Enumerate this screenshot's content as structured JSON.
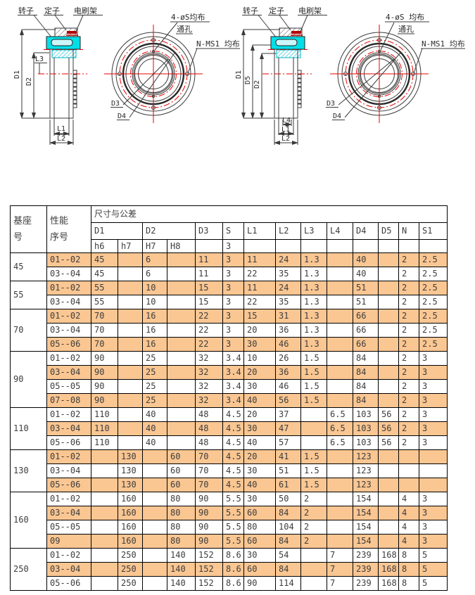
{
  "colors": {
    "highlight": "#fac692",
    "line": "#3a3a3a",
    "red": "#e80000",
    "cyan": "#00dfe8",
    "brush_red": "#b30000"
  },
  "drawing1": {
    "rotor": "转子",
    "stator": "定子",
    "brush": "电刷架",
    "holes1": "4-øS均布",
    "holes2": "通孔",
    "terminal": "N-MS1 均布",
    "d1": "D1",
    "d2": "D2",
    "l3": "L3",
    "l1": "L1",
    "l2": "L2",
    "d3": "D3",
    "d4": "D4"
  },
  "drawing2": {
    "rotor": "转子",
    "stator": "定子",
    "brush": "电刷架",
    "holes1": "4-øS 均布",
    "holes2": "通孔",
    "terminal": "N-MS1 均布",
    "d1": "D1",
    "d5": "D5",
    "d2": "D2",
    "l4": "L4",
    "l1": "L1",
    "l2": "L2",
    "d3": "D3",
    "d4": "D4"
  },
  "table": {
    "corner1": "基座\n号",
    "corner2": "性能\n序号",
    "span_header": "尺寸与公差",
    "col_headers": [
      "D1",
      "D2",
      "D3",
      "S",
      "L1",
      "L2",
      "L3",
      "L4",
      "D4",
      "D5",
      "N",
      "S1"
    ],
    "sub_headers": [
      "h6",
      "h7",
      "H7",
      "H8",
      "",
      "3",
      "",
      "",
      "",
      "",
      "",
      "",
      "",
      ""
    ],
    "groups": [
      {
        "base": "45",
        "rows": [
          {
            "perf": "01--02",
            "hl": true,
            "cells": [
              "45",
              "",
              "6",
              "",
              "11",
              "3",
              "11",
              "24",
              "1.3",
              "",
              "40",
              "",
              "2",
              "2.5"
            ]
          },
          {
            "perf": "03--04",
            "hl": false,
            "cells": [
              "45",
              "",
              "6",
              "",
              "11",
              "3",
              "22",
              "35",
              "1.3",
              "",
              "40",
              "",
              "2",
              "2.5"
            ]
          }
        ]
      },
      {
        "base": "55",
        "rows": [
          {
            "perf": "01--02",
            "hl": true,
            "cells": [
              "55",
              "",
              "10",
              "",
              "15",
              "3",
              "11",
              "24",
              "1.3",
              "",
              "51",
              "",
              "2",
              "2.5"
            ]
          },
          {
            "perf": "03--04",
            "hl": false,
            "cells": [
              "55",
              "",
              "10",
              "",
              "15",
              "3",
              "22",
              "35",
              "1.3",
              "",
              "51",
              "",
              "2",
              "2.5"
            ]
          }
        ]
      },
      {
        "base": "70",
        "rows": [
          {
            "perf": "01--02",
            "hl": true,
            "cells": [
              "70",
              "",
              "16",
              "",
              "22",
              "3",
              "15",
              "31",
              "1.3",
              "",
              "66",
              "",
              "2",
              "2.5"
            ]
          },
          {
            "perf": "03--04",
            "hl": false,
            "cells": [
              "70",
              "",
              "16",
              "",
              "22",
              "3",
              "20",
              "36",
              "1.3",
              "",
              "66",
              "",
              "2",
              "2.5"
            ]
          },
          {
            "perf": "05--06",
            "hl": true,
            "cells": [
              "70",
              "",
              "16",
              "",
              "22",
              "3",
              "30",
              "46",
              "1.3",
              "",
              "66",
              "",
              "2",
              "2.5"
            ]
          }
        ]
      },
      {
        "base": "90",
        "rows": [
          {
            "perf": "01--02",
            "hl": false,
            "cells": [
              "90",
              "",
              "25",
              "",
              "32",
              "3.4",
              "10",
              "26",
              "1.5",
              "",
              "84",
              "",
              "2",
              "3"
            ]
          },
          {
            "perf": "03--04",
            "hl": true,
            "cells": [
              "90",
              "",
              "25",
              "",
              "32",
              "3.4",
              "20",
              "36",
              "1.5",
              "",
              "84",
              "",
              "2",
              "3"
            ]
          },
          {
            "perf": "05--05",
            "hl": false,
            "cells": [
              "90",
              "",
              "25",
              "",
              "32",
              "3.4",
              "30",
              "46",
              "1.5",
              "",
              "84",
              "",
              "2",
              "3"
            ]
          },
          {
            "perf": "07--08",
            "hl": true,
            "cells": [
              "90",
              "",
              "25",
              "",
              "32",
              "3.4",
              "40",
              "56",
              "1.5",
              "",
              "84",
              "",
              "2",
              "3"
            ]
          }
        ]
      },
      {
        "base": "110",
        "rows": [
          {
            "perf": "01--02",
            "hl": false,
            "cells": [
              "110",
              "",
              "40",
              "",
              "48",
              "4.5",
              "20",
              "37",
              "",
              "6.5",
              "103",
              "56",
              "2",
              "3"
            ]
          },
          {
            "perf": "03--04",
            "hl": true,
            "cells": [
              "110",
              "",
              "40",
              "",
              "48",
              "4.5",
              "30",
              "47",
              "",
              "6.5",
              "103",
              "56",
              "2",
              "3"
            ]
          },
          {
            "perf": "05--06",
            "hl": false,
            "cells": [
              "110",
              "",
              "40",
              "",
              "48",
              "4.5",
              "40",
              "57",
              "",
              "6.5",
              "103",
              "56",
              "2",
              "3"
            ]
          }
        ]
      },
      {
        "base": "130",
        "rows": [
          {
            "perf": "01--02",
            "hl": true,
            "cells": [
              "",
              "130",
              "",
              "60",
              "70",
              "4.5",
              "20",
              "41",
              "1.5",
              "",
              "123",
              "",
              "",
              ""
            ]
          },
          {
            "perf": "03--04",
            "hl": false,
            "cells": [
              "",
              "130",
              "",
              "60",
              "70",
              "4.5",
              "30",
              "51",
              "1.5",
              "",
              "123",
              "",
              "",
              ""
            ]
          },
          {
            "perf": "05--06",
            "hl": true,
            "cells": [
              "",
              "130",
              "",
              "60",
              "70",
              "4.5",
              "40",
              "61",
              "1.5",
              "",
              "123",
              "",
              "",
              ""
            ]
          }
        ]
      },
      {
        "base": "160",
        "rows": [
          {
            "perf": "01--02",
            "hl": false,
            "cells": [
              "",
              "160",
              "",
              "80",
              "90",
              "5.5",
              "30",
              "50",
              "2",
              "",
              "154",
              "",
              "4",
              "3"
            ]
          },
          {
            "perf": "03--04",
            "hl": true,
            "cells": [
              "",
              "160",
              "",
              "80",
              "90",
              "5.5",
              "60",
              "84",
              "2",
              "",
              "154",
              "",
              "4",
              "3"
            ]
          },
          {
            "perf": "05--05",
            "hl": false,
            "cells": [
              "",
              "160",
              "",
              "80",
              "90",
              "5.5",
              "80",
              "104",
              "2",
              "",
              "154",
              "",
              "4",
              "3"
            ]
          },
          {
            "perf": "09",
            "hl": true,
            "cells": [
              "",
              "160",
              "",
              "80",
              "90",
              "5.5",
              "60",
              "84",
              "2",
              "",
              "154",
              "",
              "4",
              "3"
            ]
          }
        ]
      },
      {
        "base": "250",
        "rows": [
          {
            "perf": "01--02",
            "hl": false,
            "cells": [
              "",
              "250",
              "",
              "140",
              "152",
              "8.6",
              "30",
              "54",
              "",
              "7",
              "239",
              "168",
              "8",
              "5"
            ]
          },
          {
            "perf": "03--04",
            "hl": true,
            "cells": [
              "",
              "250",
              "",
              "140",
              "152",
              "8.6",
              "60",
              "84",
              "",
              "7",
              "239",
              "168",
              "8",
              "5"
            ]
          },
          {
            "perf": "05--06",
            "hl": false,
            "cells": [
              "",
              "250",
              "",
              "140",
              "152",
              "8.6",
              "90",
              "114",
              "",
              "7",
              "239",
              "168",
              "8",
              "5"
            ]
          }
        ]
      }
    ]
  }
}
